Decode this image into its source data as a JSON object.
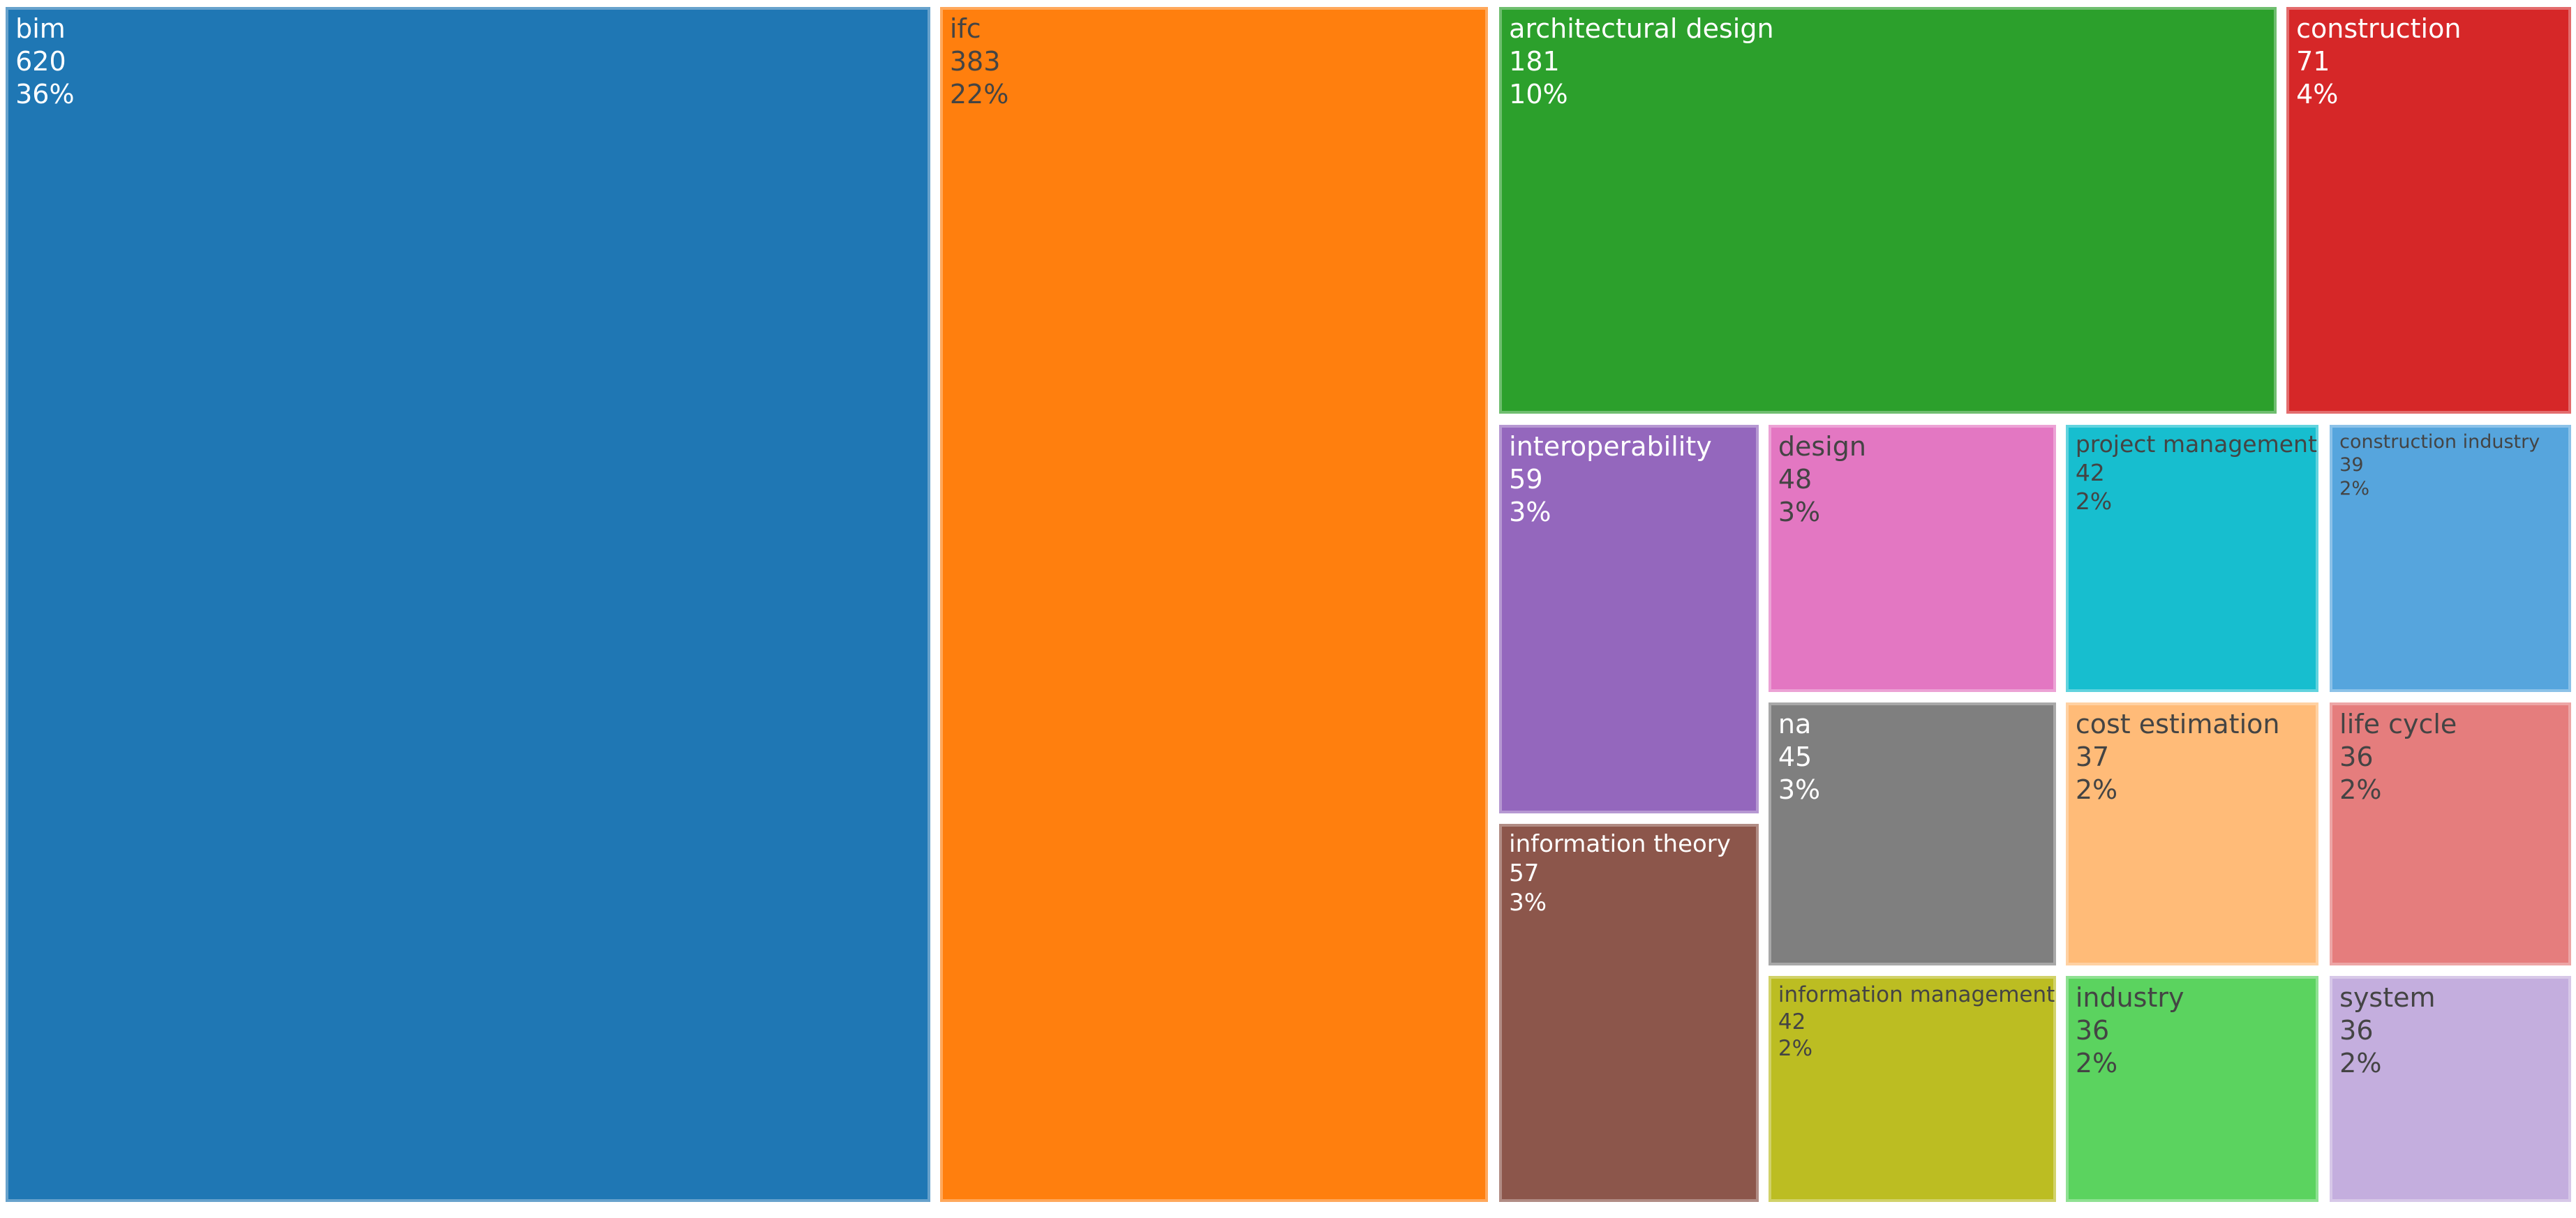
{
  "chart_data": {
    "type": "treemap",
    "title": "",
    "legend": "none",
    "background": "#ffffff",
    "items": [
      {
        "label": "bim",
        "value": 620,
        "pct": "36%",
        "color": "#1f77b4",
        "text_color": "#ffffff",
        "rect": {
          "x": 0.22,
          "y": 0.57,
          "w": 35.9,
          "h": 98.11
        }
      },
      {
        "label": "ifc",
        "value": 383,
        "pct": "22%",
        "color": "#ff7f0e",
        "text_color": "#444444",
        "rect": {
          "x": 36.49,
          "y": 0.57,
          "w": 21.27,
          "h": 98.11
        }
      },
      {
        "label": "architectural design",
        "value": 181,
        "pct": "10%",
        "color": "#2ca02c",
        "text_color": "#ffffff",
        "rect": {
          "x": 58.2,
          "y": 0.57,
          "w": 30.18,
          "h": 33.39
        }
      },
      {
        "label": "construction",
        "value": 71,
        "pct": "4%",
        "color": "#d62728",
        "text_color": "#ffffff",
        "rect": {
          "x": 88.76,
          "y": 0.57,
          "w": 11.05,
          "h": 33.39
        }
      },
      {
        "label": "interoperability",
        "value": 59,
        "pct": "3%",
        "color": "#9467bd",
        "text_color": "#ffffff",
        "rect": {
          "x": 58.2,
          "y": 34.88,
          "w": 10.08,
          "h": 31.9
        }
      },
      {
        "label": "information theory",
        "value": 57,
        "pct": "3%",
        "color": "#8c564b",
        "text_color": "#ffffff",
        "rect": {
          "x": 58.2,
          "y": 67.64,
          "w": 10.08,
          "h": 31.04
        }
      },
      {
        "label": "design",
        "value": 48,
        "pct": "3%",
        "color": "#e377c2",
        "text_color": "#444444",
        "rect": {
          "x": 68.65,
          "y": 34.88,
          "w": 11.16,
          "h": 21.93
        }
      },
      {
        "label": "na",
        "value": 45,
        "pct": "3%",
        "color": "#7f7f7f",
        "text_color": "#ffffff",
        "rect": {
          "x": 68.65,
          "y": 57.67,
          "w": 11.16,
          "h": 21.59
        }
      },
      {
        "label": "information management",
        "value": 42,
        "pct": "2%",
        "color": "#bcbd22",
        "text_color": "#444444",
        "rect": {
          "x": 68.65,
          "y": 80.13,
          "w": 11.16,
          "h": 18.56
        }
      },
      {
        "label": "project management",
        "value": 42,
        "pct": "2%",
        "color": "#17becf",
        "text_color": "#444444",
        "rect": {
          "x": 80.19,
          "y": 34.88,
          "w": 9.81,
          "h": 21.93
        }
      },
      {
        "label": "construction industry",
        "value": 39,
        "pct": "2%",
        "color": "#56a5dd",
        "text_color": "#444444",
        "rect": {
          "x": 90.44,
          "y": 34.88,
          "w": 9.37,
          "h": 21.93
        }
      },
      {
        "label": "cost estimation",
        "value": 37,
        "pct": "2%",
        "color": "#ffbb78",
        "text_color": "#444444",
        "rect": {
          "x": 80.19,
          "y": 57.67,
          "w": 9.81,
          "h": 21.59
        }
      },
      {
        "label": "life cycle",
        "value": 36,
        "pct": "2%",
        "color": "#e57d7d",
        "text_color": "#444444",
        "rect": {
          "x": 90.44,
          "y": 57.67,
          "w": 9.37,
          "h": 21.59
        }
      },
      {
        "label": "industry",
        "value": 36,
        "pct": "2%",
        "color": "#5bd35f",
        "text_color": "#444444",
        "rect": {
          "x": 80.19,
          "y": 80.13,
          "w": 9.81,
          "h": 18.56
        }
      },
      {
        "label": "system",
        "value": 36,
        "pct": "2%",
        "color": "#c4aede",
        "text_color": "#444444",
        "rect": {
          "x": 90.44,
          "y": 80.13,
          "w": 9.37,
          "h": 18.56
        }
      }
    ]
  }
}
